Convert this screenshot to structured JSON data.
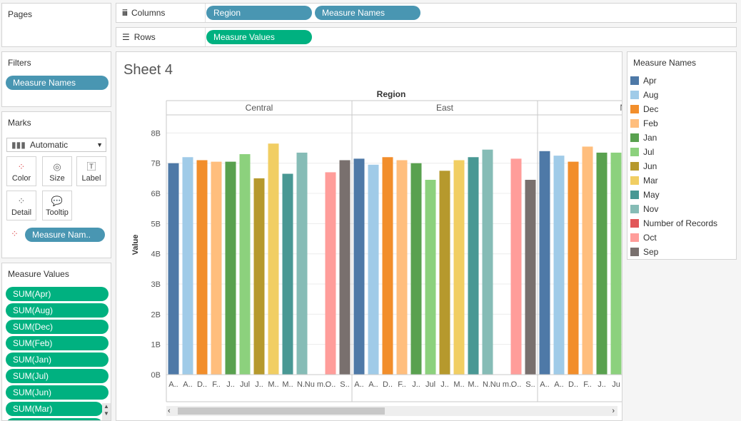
{
  "shelves": {
    "pages_label": "Pages",
    "columns_label": "Columns",
    "columns_pills": [
      "Region",
      "Measure Names"
    ],
    "rows_label": "Rows",
    "rows_pills": [
      "Measure Values"
    ]
  },
  "filters": {
    "title": "Filters",
    "pills": [
      "Measure Names"
    ]
  },
  "marks": {
    "title": "Marks",
    "type": "Automatic",
    "buttons": [
      "Color",
      "Size",
      "Label",
      "Detail",
      "Tooltip"
    ],
    "color_pill": "Measure Nam.."
  },
  "measure_values": {
    "title": "Measure Values",
    "pills": [
      "SUM(Apr)",
      "SUM(Aug)",
      "SUM(Dec)",
      "SUM(Feb)",
      "SUM(Jan)",
      "SUM(Jul)",
      "SUM(Jun)",
      "SUM(Mar)"
    ]
  },
  "sheet": {
    "title": "Sheet 4",
    "column_header": "Region"
  },
  "legend": {
    "title": "Measure Names",
    "items": [
      {
        "name": "Apr",
        "color": "#4e79a7"
      },
      {
        "name": "Aug",
        "color": "#a0cbe8"
      },
      {
        "name": "Dec",
        "color": "#f28e2b"
      },
      {
        "name": "Feb",
        "color": "#ffbe7d"
      },
      {
        "name": "Jan",
        "color": "#59a14f"
      },
      {
        "name": "Jul",
        "color": "#8cd17d"
      },
      {
        "name": "Jun",
        "color": "#b6992d"
      },
      {
        "name": "Mar",
        "color": "#f1ce63"
      },
      {
        "name": "May",
        "color": "#499894"
      },
      {
        "name": "Nov",
        "color": "#86bcb6"
      },
      {
        "name": "Number of Records",
        "color": "#e15759"
      },
      {
        "name": "Oct",
        "color": "#ff9d9a"
      },
      {
        "name": "Sep",
        "color": "#79706e"
      }
    ]
  },
  "chart_data": {
    "type": "bar",
    "ylabel": "Value",
    "ylim": [
      0,
      8.6
    ],
    "yticks": [
      "0B",
      "1B",
      "2B",
      "3B",
      "4B",
      "5B",
      "6B",
      "7B",
      "8B"
    ],
    "ytick_values": [
      0,
      1,
      2,
      3,
      4,
      5,
      6,
      7,
      8
    ],
    "categories": [
      "Apr",
      "Aug",
      "Dec",
      "Feb",
      "Jan",
      "Jul",
      "Jun",
      "Mar",
      "May",
      "Nov",
      "Number of Records",
      "Oct",
      "Sep"
    ],
    "groups": [
      {
        "name": "Central",
        "tick_labels": [
          "A..",
          "A..",
          "D..",
          "F..",
          "J..",
          "Jul",
          "J..",
          "M..",
          "M..",
          "N..",
          "Nu m..",
          "O..",
          "S.."
        ],
        "values": [
          7.0,
          7.2,
          7.1,
          7.05,
          7.05,
          7.3,
          6.5,
          7.65,
          6.65,
          7.35,
          0,
          6.7,
          7.1
        ]
      },
      {
        "name": "East",
        "tick_labels": [
          "A..",
          "A..",
          "D..",
          "F..",
          "J..",
          "Jul",
          "J..",
          "M..",
          "M..",
          "N..",
          "Nu m..",
          "O..",
          "S.."
        ],
        "values": [
          7.15,
          6.95,
          7.2,
          7.1,
          7.0,
          6.45,
          6.75,
          7.1,
          7.2,
          7.45,
          0,
          7.15,
          6.45
        ]
      },
      {
        "name": "North",
        "tick_labels": [
          "A..",
          "A..",
          "D..",
          "F..",
          "J..",
          "Ju"
        ],
        "values": [
          7.4,
          7.25,
          7.05,
          7.55,
          7.35,
          7.35
        ]
      }
    ]
  }
}
